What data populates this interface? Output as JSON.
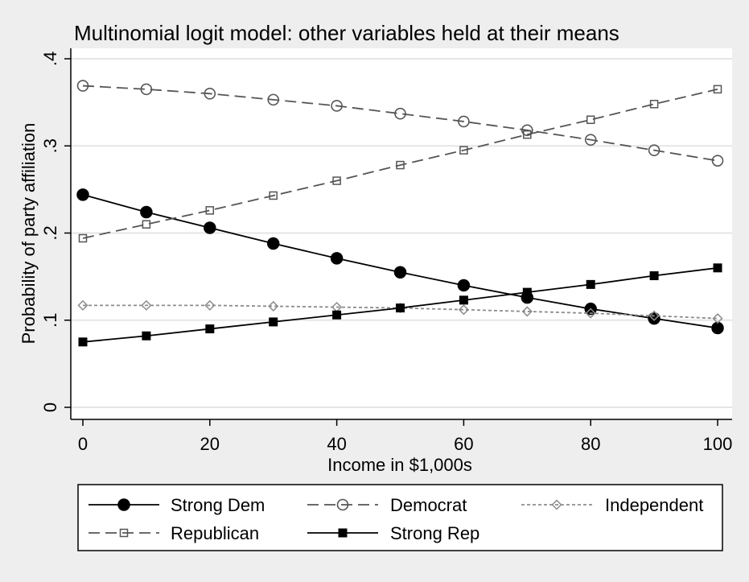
{
  "chart_data": {
    "type": "line",
    "title": "Multinomial logit model: other variables held at their means",
    "xlabel": "Income in $1,000s",
    "ylabel": "Probability of party affiliation",
    "xlim": [
      0,
      100
    ],
    "ylim": [
      0,
      0.4
    ],
    "x_ticks": [
      0,
      20,
      40,
      60,
      80,
      100
    ],
    "x_tick_labels": [
      "0",
      "20",
      "40",
      "60",
      "80",
      "100"
    ],
    "y_ticks": [
      0,
      0.1,
      0.2,
      0.3,
      0.4
    ],
    "y_tick_labels": [
      "0",
      ".1",
      ".2",
      ".3",
      ".4"
    ],
    "grid": true,
    "legend_position": "bottom",
    "x": [
      0,
      10,
      20,
      30,
      40,
      50,
      60,
      70,
      80,
      90,
      100
    ],
    "series": [
      {
        "name": "Strong Dem",
        "marker": "filled-circle",
        "dash": "solid",
        "color": "#000000",
        "values": [
          0.244,
          0.224,
          0.206,
          0.188,
          0.171,
          0.155,
          0.14,
          0.126,
          0.113,
          0.102,
          0.091
        ]
      },
      {
        "name": "Democrat",
        "marker": "hollow-circle",
        "dash": "long-dash",
        "color": "#555555",
        "values": [
          0.369,
          0.365,
          0.36,
          0.353,
          0.346,
          0.337,
          0.328,
          0.318,
          0.307,
          0.295,
          0.283
        ]
      },
      {
        "name": "Independent",
        "marker": "hollow-diamond",
        "dash": "short-dash",
        "color": "#8c8c8c",
        "values": [
          0.117,
          0.117,
          0.117,
          0.116,
          0.115,
          0.114,
          0.112,
          0.11,
          0.108,
          0.105,
          0.102
        ]
      },
      {
        "name": "Republican",
        "marker": "hollow-square",
        "dash": "long-dash",
        "color": "#555555",
        "values": [
          0.194,
          0.21,
          0.226,
          0.243,
          0.26,
          0.278,
          0.295,
          0.313,
          0.33,
          0.348,
          0.365
        ]
      },
      {
        "name": "Strong Rep",
        "marker": "filled-square",
        "dash": "solid",
        "color": "#000000",
        "values": [
          0.075,
          0.082,
          0.09,
          0.098,
          0.106,
          0.114,
          0.123,
          0.132,
          0.141,
          0.151,
          0.16
        ]
      }
    ]
  },
  "colors": {
    "background": "#eeeeee",
    "plot_area": "#ffffff",
    "gridline": "#e5e5e5"
  }
}
